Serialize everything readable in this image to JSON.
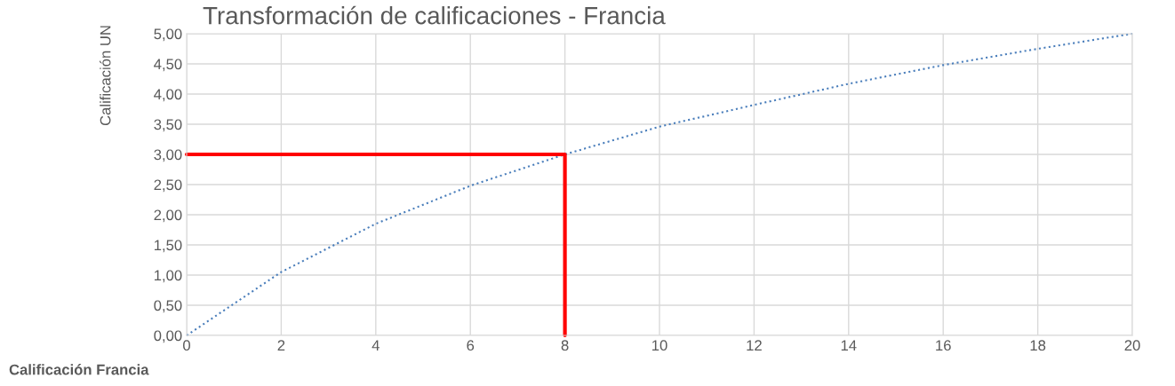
{
  "chart_data": {
    "type": "line",
    "title": "Transformación de calificaciones - Francia",
    "xlabel": "Calificación Francia",
    "ylabel": "Calificación UN",
    "series": [
      {
        "color": "#4a7ebb",
        "line_style": "dotted",
        "x": [
          0,
          2,
          4,
          6,
          8,
          10,
          12,
          14,
          16,
          18,
          20
        ],
        "values": [
          0,
          1.05,
          1.85,
          2.48,
          3.0,
          3.46,
          3.82,
          4.17,
          4.48,
          4.75,
          5.0
        ]
      },
      {
        "color": "#ff0000",
        "line_style": "solid",
        "x": [
          0,
          8,
          8
        ],
        "values": [
          3.0,
          3.0,
          0
        ]
      }
    ],
    "xlim": [
      0,
      20
    ],
    "xticks": [
      0,
      2,
      4,
      6,
      8,
      10,
      12,
      14,
      16,
      18,
      20
    ],
    "ylim": [
      0,
      5
    ],
    "yticks": [
      {
        "value": 0,
        "label": "0,00"
      },
      {
        "value": 0.5,
        "label": "0,50"
      },
      {
        "value": 1,
        "label": "1,00"
      },
      {
        "value": 1.5,
        "label": "1,50"
      },
      {
        "value": 2,
        "label": "2,00"
      },
      {
        "value": 2.5,
        "label": "2,50"
      },
      {
        "value": 3,
        "label": "3,00"
      },
      {
        "value": 3.5,
        "label": "3,50"
      },
      {
        "value": 4,
        "label": "4,00"
      },
      {
        "value": 4.5,
        "label": "4,50"
      },
      {
        "value": 5,
        "label": "5,00"
      }
    ],
    "grid": true,
    "marker": "none"
  }
}
